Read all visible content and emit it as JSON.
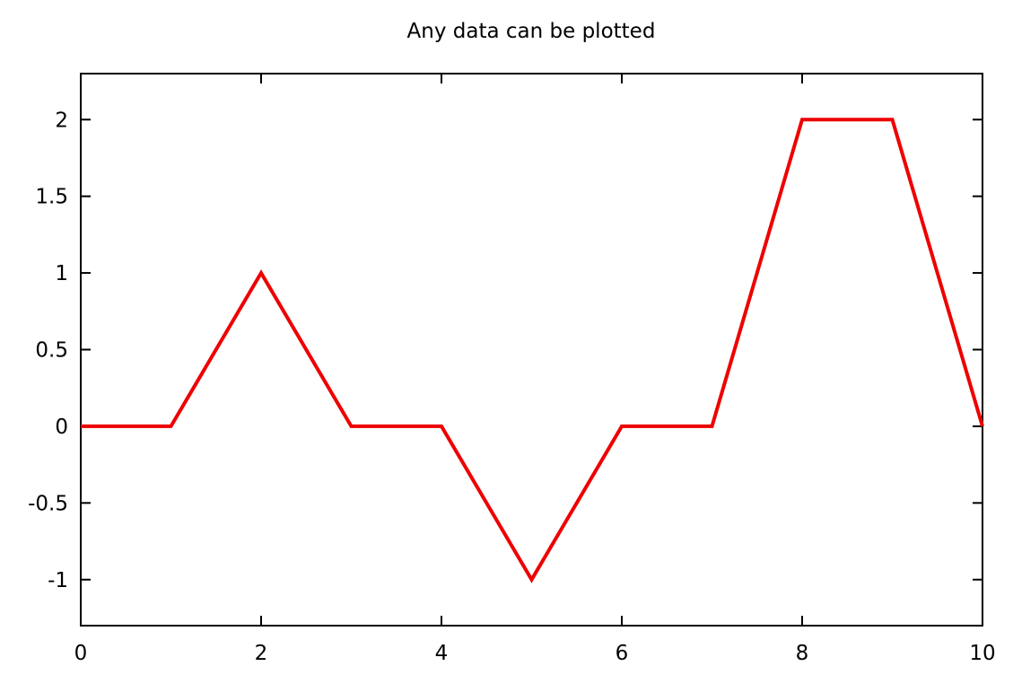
{
  "chart_data": {
    "type": "line",
    "title": "Any data can be plotted",
    "xlabel": "",
    "ylabel": "",
    "xlim": [
      0,
      10
    ],
    "ylim": [
      -1.3,
      2.3
    ],
    "xticks": [
      0,
      2,
      4,
      6,
      8,
      10
    ],
    "xtick_labels": [
      "0",
      "2",
      "4",
      "6",
      "8",
      "10"
    ],
    "yticks": [
      -1,
      -0.5,
      0,
      0.5,
      1,
      1.5,
      2
    ],
    "ytick_labels": [
      "-1",
      "-0.5",
      "0",
      "0.5",
      "1",
      "1.5",
      "2"
    ],
    "grid": false,
    "legend": "none",
    "series": [
      {
        "color": "#ee0000",
        "x": [
          0,
          1,
          2,
          3,
          4,
          5,
          6,
          7,
          8,
          9,
          10
        ],
        "y": [
          0,
          0,
          1,
          0,
          0,
          -1,
          0,
          0,
          2,
          2,
          0
        ]
      }
    ]
  }
}
